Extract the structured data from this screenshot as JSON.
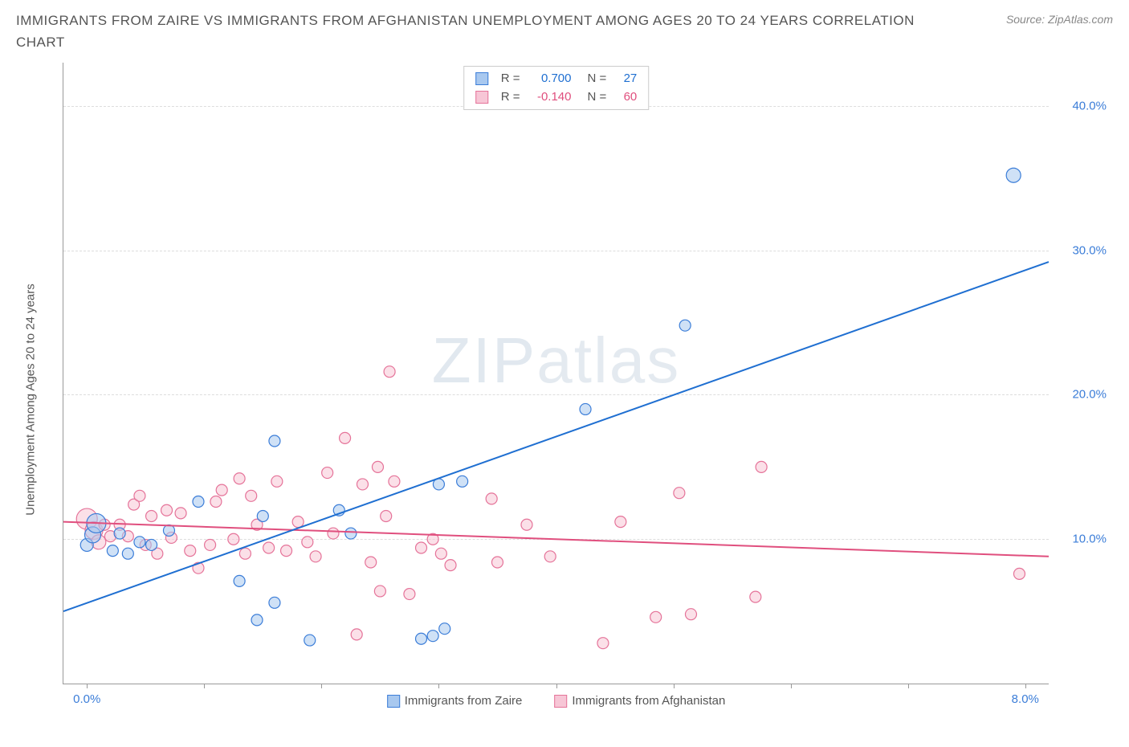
{
  "title": "IMMIGRANTS FROM ZAIRE VS IMMIGRANTS FROM AFGHANISTAN UNEMPLOYMENT AMONG AGES 20 TO 24 YEARS CORRELATION CHART",
  "source": "Source: ZipAtlas.com",
  "y_axis_label": "Unemployment Among Ages 20 to 24 years",
  "watermark_bold": "ZIP",
  "watermark_thin": "atlas",
  "colors": {
    "blue_stroke": "#3b7dd8",
    "blue_fill": "#a8c8ef",
    "pink_stroke": "#e57399",
    "pink_fill": "#f7c6d6",
    "blue_line": "#1f6fd1",
    "pink_line": "#e04f7e",
    "grid": "#dddddd",
    "axis": "#999999",
    "text": "#555555",
    "tick_text": "#3b7dd8"
  },
  "xlim": [
    -0.2,
    8.2
  ],
  "ylim": [
    0,
    43
  ],
  "y_ticks": [
    {
      "v": 10,
      "label": "10.0%"
    },
    {
      "v": 20,
      "label": "20.0%"
    },
    {
      "v": 30,
      "label": "30.0%"
    },
    {
      "v": 40,
      "label": "40.0%"
    }
  ],
  "x_ticks_minor": [
    0,
    1,
    2,
    3,
    4,
    5,
    6,
    7,
    8
  ],
  "x_ticks_labeled": [
    {
      "v": 0,
      "label": "0.0%"
    },
    {
      "v": 8,
      "label": "8.0%"
    }
  ],
  "top_legend": {
    "rows": [
      {
        "swatch_fill": "#a8c8ef",
        "swatch_stroke": "#3b7dd8",
        "r_label": "R =",
        "r_val": "0.700",
        "n_label": "N =",
        "n_val": "27",
        "val_color": "#1f6fd1"
      },
      {
        "swatch_fill": "#f7c6d6",
        "swatch_stroke": "#e57399",
        "r_label": "R =",
        "r_val": "-0.140",
        "n_label": "N =",
        "n_val": "60",
        "val_color": "#e04f7e"
      }
    ]
  },
  "x_legend": [
    {
      "swatch_fill": "#a8c8ef",
      "swatch_stroke": "#3b7dd8",
      "label": "Immigrants from Zaire"
    },
    {
      "swatch_fill": "#f7c6d6",
      "swatch_stroke": "#e57399",
      "label": "Immigrants from Afghanistan"
    }
  ],
  "series": {
    "zaire": {
      "color_stroke": "#3b7dd8",
      "color_fill": "#a8c8ef",
      "fill_opacity": 0.55,
      "marker_r_base": 7,
      "trend": {
        "x1": -0.2,
        "y1": 5.0,
        "x2": 8.2,
        "y2": 29.2,
        "color": "#1f6fd1",
        "width": 2
      },
      "points": [
        {
          "x": 0.0,
          "y": 9.6,
          "r": 8
        },
        {
          "x": 0.05,
          "y": 10.3,
          "r": 10
        },
        {
          "x": 0.08,
          "y": 11.1,
          "r": 12
        },
        {
          "x": 0.22,
          "y": 9.2,
          "r": 7
        },
        {
          "x": 0.28,
          "y": 10.4,
          "r": 7
        },
        {
          "x": 0.35,
          "y": 9.0,
          "r": 7
        },
        {
          "x": 0.45,
          "y": 9.8,
          "r": 7
        },
        {
          "x": 0.55,
          "y": 9.6,
          "r": 7
        },
        {
          "x": 0.7,
          "y": 10.6,
          "r": 7
        },
        {
          "x": 0.95,
          "y": 12.6,
          "r": 7
        },
        {
          "x": 1.3,
          "y": 7.1,
          "r": 7
        },
        {
          "x": 1.45,
          "y": 4.4,
          "r": 7
        },
        {
          "x": 1.5,
          "y": 11.6,
          "r": 7
        },
        {
          "x": 1.6,
          "y": 5.6,
          "r": 7
        },
        {
          "x": 1.6,
          "y": 16.8,
          "r": 7
        },
        {
          "x": 1.9,
          "y": 3.0,
          "r": 7
        },
        {
          "x": 2.15,
          "y": 12.0,
          "r": 7
        },
        {
          "x": 2.25,
          "y": 10.4,
          "r": 7
        },
        {
          "x": 2.85,
          "y": 3.1,
          "r": 7
        },
        {
          "x": 2.95,
          "y": 3.3,
          "r": 7
        },
        {
          "x": 3.0,
          "y": 13.8,
          "r": 7
        },
        {
          "x": 3.05,
          "y": 3.8,
          "r": 7
        },
        {
          "x": 3.2,
          "y": 14.0,
          "r": 7
        },
        {
          "x": 4.25,
          "y": 19.0,
          "r": 7
        },
        {
          "x": 5.1,
          "y": 24.8,
          "r": 7
        },
        {
          "x": 7.9,
          "y": 35.2,
          "r": 9
        }
      ]
    },
    "afghanistan": {
      "color_stroke": "#e57399",
      "color_fill": "#f7c6d6",
      "fill_opacity": 0.55,
      "marker_r_base": 7,
      "trend": {
        "x1": -0.2,
        "y1": 11.2,
        "x2": 8.2,
        "y2": 8.8,
        "color": "#e04f7e",
        "width": 2
      },
      "points": [
        {
          "x": 0.0,
          "y": 11.4,
          "r": 13
        },
        {
          "x": 0.06,
          "y": 10.6,
          "r": 11
        },
        {
          "x": 0.1,
          "y": 9.8,
          "r": 9
        },
        {
          "x": 0.15,
          "y": 11.0,
          "r": 7
        },
        {
          "x": 0.2,
          "y": 10.2,
          "r": 7
        },
        {
          "x": 0.28,
          "y": 11.0,
          "r": 7
        },
        {
          "x": 0.35,
          "y": 10.2,
          "r": 7
        },
        {
          "x": 0.4,
          "y": 12.4,
          "r": 7
        },
        {
          "x": 0.45,
          "y": 13.0,
          "r": 7
        },
        {
          "x": 0.5,
          "y": 9.6,
          "r": 7
        },
        {
          "x": 0.55,
          "y": 11.6,
          "r": 7
        },
        {
          "x": 0.6,
          "y": 9.0,
          "r": 7
        },
        {
          "x": 0.68,
          "y": 12.0,
          "r": 7
        },
        {
          "x": 0.72,
          "y": 10.1,
          "r": 7
        },
        {
          "x": 0.8,
          "y": 11.8,
          "r": 7
        },
        {
          "x": 0.88,
          "y": 9.2,
          "r": 7
        },
        {
          "x": 0.95,
          "y": 8.0,
          "r": 7
        },
        {
          "x": 1.05,
          "y": 9.6,
          "r": 7
        },
        {
          "x": 1.1,
          "y": 12.6,
          "r": 7
        },
        {
          "x": 1.15,
          "y": 13.4,
          "r": 7
        },
        {
          "x": 1.25,
          "y": 10.0,
          "r": 7
        },
        {
          "x": 1.3,
          "y": 14.2,
          "r": 7
        },
        {
          "x": 1.35,
          "y": 9.0,
          "r": 7
        },
        {
          "x": 1.4,
          "y": 13.0,
          "r": 7
        },
        {
          "x": 1.45,
          "y": 11.0,
          "r": 7
        },
        {
          "x": 1.55,
          "y": 9.4,
          "r": 7
        },
        {
          "x": 1.62,
          "y": 14.0,
          "r": 7
        },
        {
          "x": 1.7,
          "y": 9.2,
          "r": 7
        },
        {
          "x": 1.8,
          "y": 11.2,
          "r": 7
        },
        {
          "x": 1.88,
          "y": 9.8,
          "r": 7
        },
        {
          "x": 1.95,
          "y": 8.8,
          "r": 7
        },
        {
          "x": 2.05,
          "y": 14.6,
          "r": 7
        },
        {
          "x": 2.1,
          "y": 10.4,
          "r": 7
        },
        {
          "x": 2.2,
          "y": 17.0,
          "r": 7
        },
        {
          "x": 2.3,
          "y": 3.4,
          "r": 7
        },
        {
          "x": 2.35,
          "y": 13.8,
          "r": 7
        },
        {
          "x": 2.42,
          "y": 8.4,
          "r": 7
        },
        {
          "x": 2.48,
          "y": 15.0,
          "r": 7
        },
        {
          "x": 2.5,
          "y": 6.4,
          "r": 7
        },
        {
          "x": 2.55,
          "y": 11.6,
          "r": 7
        },
        {
          "x": 2.58,
          "y": 21.6,
          "r": 7
        },
        {
          "x": 2.62,
          "y": 14.0,
          "r": 7
        },
        {
          "x": 2.75,
          "y": 6.2,
          "r": 7
        },
        {
          "x": 2.85,
          "y": 9.4,
          "r": 7
        },
        {
          "x": 2.95,
          "y": 10.0,
          "r": 7
        },
        {
          "x": 3.02,
          "y": 9.0,
          "r": 7
        },
        {
          "x": 3.1,
          "y": 8.2,
          "r": 7
        },
        {
          "x": 3.45,
          "y": 12.8,
          "r": 7
        },
        {
          "x": 3.5,
          "y": 8.4,
          "r": 7
        },
        {
          "x": 3.75,
          "y": 11.0,
          "r": 7
        },
        {
          "x": 3.95,
          "y": 8.8,
          "r": 7
        },
        {
          "x": 4.4,
          "y": 2.8,
          "r": 7
        },
        {
          "x": 4.55,
          "y": 11.2,
          "r": 7
        },
        {
          "x": 4.85,
          "y": 4.6,
          "r": 7
        },
        {
          "x": 5.05,
          "y": 13.2,
          "r": 7
        },
        {
          "x": 5.15,
          "y": 4.8,
          "r": 7
        },
        {
          "x": 5.7,
          "y": 6.0,
          "r": 7
        },
        {
          "x": 5.75,
          "y": 15.0,
          "r": 7
        },
        {
          "x": 7.95,
          "y": 7.6,
          "r": 7
        }
      ]
    }
  }
}
